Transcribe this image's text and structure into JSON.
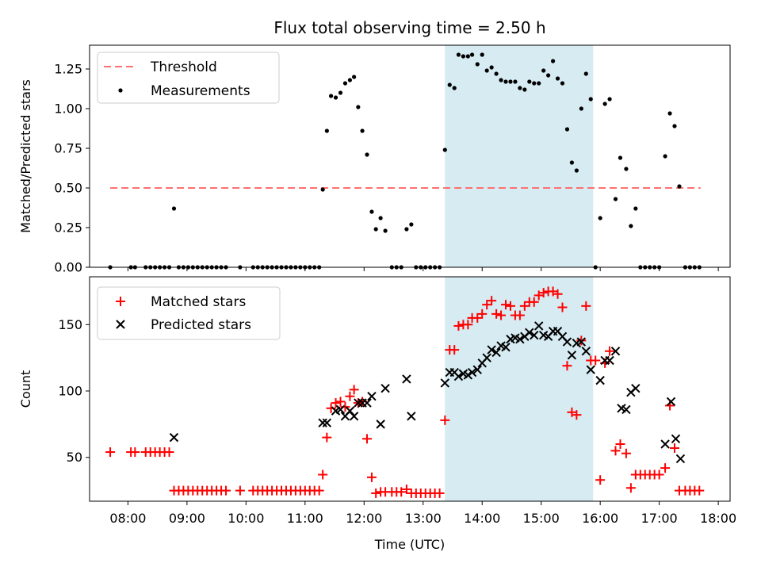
{
  "title": "Flux total observing time = 2.50 h",
  "xlabel": "Time (UTC)",
  "x_ticks": [
    "08:00",
    "09:00",
    "10:00",
    "11:00",
    "12:00",
    "13:00",
    "14:00",
    "15:00",
    "16:00",
    "17:00",
    "18:00"
  ],
  "x_tick_hours": [
    8,
    9,
    10,
    11,
    12,
    13,
    14,
    15,
    16,
    17,
    18
  ],
  "x_range_hours": [
    7.35,
    18.2
  ],
  "highlight_hours": [
    13.37,
    15.88
  ],
  "colors": {
    "threshold": "#ff7070",
    "measure": "#000000",
    "matched": "#ff0000",
    "predicted": "#000000",
    "highlight": "#add8e6"
  },
  "chart_data": [
    {
      "type": "scatter",
      "ylabel": "Matched/Predicted stars",
      "ylim": [
        0,
        1.4
      ],
      "yticks": [
        0,
        0.25,
        0.5,
        0.75,
        1.0,
        1.25
      ],
      "ytick_labels": [
        "0.00",
        "0.25",
        "0.50",
        "0.75",
        "1.00",
        "1.25"
      ],
      "legend": {
        "placement": "top-left",
        "threshold_label": "Threshold",
        "measure_label": "Measurements"
      },
      "threshold": {
        "value": 0.5,
        "x_start": 7.7,
        "x_end": 17.7
      },
      "measurements": [
        [
          7.7,
          0
        ],
        [
          8.05,
          0
        ],
        [
          8.12,
          0
        ],
        [
          8.3,
          0
        ],
        [
          8.38,
          0
        ],
        [
          8.46,
          0
        ],
        [
          8.54,
          0
        ],
        [
          8.62,
          0
        ],
        [
          8.7,
          0
        ],
        [
          8.78,
          0.37
        ],
        [
          8.86,
          0
        ],
        [
          8.94,
          0
        ],
        [
          9.02,
          0
        ],
        [
          9.1,
          0
        ],
        [
          9.18,
          0
        ],
        [
          9.26,
          0
        ],
        [
          9.34,
          0
        ],
        [
          9.42,
          0
        ],
        [
          9.5,
          0
        ],
        [
          9.58,
          0
        ],
        [
          9.66,
          0
        ],
        [
          9.9,
          0
        ],
        [
          10.12,
          0
        ],
        [
          10.2,
          0
        ],
        [
          10.28,
          0
        ],
        [
          10.36,
          0
        ],
        [
          10.44,
          0
        ],
        [
          10.52,
          0
        ],
        [
          10.6,
          0
        ],
        [
          10.68,
          0
        ],
        [
          10.76,
          0
        ],
        [
          10.84,
          0
        ],
        [
          10.92,
          0
        ],
        [
          11.0,
          0
        ],
        [
          11.08,
          0
        ],
        [
          11.16,
          0
        ],
        [
          11.24,
          0
        ],
        [
          11.3,
          0.49
        ],
        [
          11.37,
          0.86
        ],
        [
          11.44,
          1.08
        ],
        [
          11.52,
          1.07
        ],
        [
          11.6,
          1.1
        ],
        [
          11.68,
          1.16
        ],
        [
          11.76,
          1.18
        ],
        [
          11.83,
          1.2
        ],
        [
          11.9,
          1.01
        ],
        [
          11.97,
          0.86
        ],
        [
          12.05,
          0.71
        ],
        [
          12.13,
          0.35
        ],
        [
          12.2,
          0.24
        ],
        [
          12.28,
          0.31
        ],
        [
          12.36,
          0.23
        ],
        [
          12.47,
          0
        ],
        [
          12.55,
          0
        ],
        [
          12.63,
          0
        ],
        [
          12.72,
          0.24
        ],
        [
          12.8,
          0.27
        ],
        [
          12.88,
          0
        ],
        [
          12.96,
          0
        ],
        [
          13.04,
          0
        ],
        [
          13.12,
          0
        ],
        [
          13.2,
          0
        ],
        [
          13.28,
          0
        ],
        [
          13.37,
          0.74
        ],
        [
          13.45,
          1.15
        ],
        [
          13.53,
          1.13
        ],
        [
          13.6,
          1.34
        ],
        [
          13.68,
          1.33
        ],
        [
          13.76,
          1.33
        ],
        [
          13.83,
          1.34
        ],
        [
          13.92,
          1.28
        ],
        [
          14.0,
          1.34
        ],
        [
          14.08,
          1.24
        ],
        [
          14.16,
          1.26
        ],
        [
          14.24,
          1.22
        ],
        [
          14.32,
          1.18
        ],
        [
          14.4,
          1.17
        ],
        [
          14.48,
          1.17
        ],
        [
          14.56,
          1.17
        ],
        [
          14.64,
          1.13
        ],
        [
          14.72,
          1.12
        ],
        [
          14.8,
          1.17
        ],
        [
          14.88,
          1.16
        ],
        [
          14.96,
          1.16
        ],
        [
          15.04,
          1.24
        ],
        [
          15.12,
          1.21
        ],
        [
          15.2,
          1.3
        ],
        [
          15.28,
          1.19
        ],
        [
          15.36,
          1.16
        ],
        [
          15.44,
          0.87
        ],
        [
          15.52,
          0.66
        ],
        [
          15.6,
          0.61
        ],
        [
          15.68,
          1.0
        ],
        [
          15.76,
          1.22
        ],
        [
          15.84,
          1.06
        ],
        [
          15.92,
          0
        ],
        [
          16.0,
          0.31
        ],
        [
          16.08,
          1.03
        ],
        [
          16.16,
          1.06
        ],
        [
          16.26,
          0.43
        ],
        [
          16.34,
          0.69
        ],
        [
          16.44,
          0.62
        ],
        [
          16.52,
          0.26
        ],
        [
          16.6,
          0.37
        ],
        [
          16.68,
          0
        ],
        [
          16.76,
          0
        ],
        [
          16.84,
          0
        ],
        [
          16.92,
          0
        ],
        [
          17.0,
          0
        ],
        [
          17.1,
          0.7
        ],
        [
          17.18,
          0.97
        ],
        [
          17.26,
          0.89
        ],
        [
          17.34,
          0.51
        ],
        [
          17.44,
          0
        ],
        [
          17.52,
          0
        ],
        [
          17.6,
          0
        ],
        [
          17.68,
          0
        ]
      ]
    },
    {
      "type": "scatter",
      "ylabel": "Count",
      "ylim": [
        17,
        186
      ],
      "yticks": [
        50,
        100,
        150
      ],
      "ytick_labels": [
        "50",
        "100",
        "150"
      ],
      "xlabel": "Time (UTC)",
      "legend": {
        "placement": "top-left",
        "matched_label": "Matched stars",
        "predicted_label": "Predicted stars"
      },
      "matched": [
        [
          7.7,
          54
        ],
        [
          8.05,
          54
        ],
        [
          8.12,
          54
        ],
        [
          8.3,
          54
        ],
        [
          8.38,
          54
        ],
        [
          8.46,
          54
        ],
        [
          8.54,
          54
        ],
        [
          8.62,
          54
        ],
        [
          8.7,
          54
        ],
        [
          8.78,
          25
        ],
        [
          8.86,
          25
        ],
        [
          8.94,
          25
        ],
        [
          9.02,
          25
        ],
        [
          9.1,
          25
        ],
        [
          9.18,
          25
        ],
        [
          9.26,
          25
        ],
        [
          9.34,
          25
        ],
        [
          9.42,
          25
        ],
        [
          9.5,
          25
        ],
        [
          9.58,
          25
        ],
        [
          9.66,
          25
        ],
        [
          9.9,
          25
        ],
        [
          10.12,
          25
        ],
        [
          10.2,
          25
        ],
        [
          10.28,
          25
        ],
        [
          10.36,
          25
        ],
        [
          10.44,
          25
        ],
        [
          10.52,
          25
        ],
        [
          10.6,
          25
        ],
        [
          10.68,
          25
        ],
        [
          10.76,
          25
        ],
        [
          10.84,
          25
        ],
        [
          10.92,
          25
        ],
        [
          11.0,
          25
        ],
        [
          11.08,
          25
        ],
        [
          11.16,
          25
        ],
        [
          11.24,
          25
        ],
        [
          11.3,
          37
        ],
        [
          11.37,
          65
        ],
        [
          11.44,
          87
        ],
        [
          11.52,
          91
        ],
        [
          11.6,
          92
        ],
        [
          11.68,
          88
        ],
        [
          11.76,
          96
        ],
        [
          11.83,
          101
        ],
        [
          11.9,
          91
        ],
        [
          11.97,
          92
        ],
        [
          12.05,
          64
        ],
        [
          12.13,
          35
        ],
        [
          12.2,
          23
        ],
        [
          12.28,
          24
        ],
        [
          12.36,
          24
        ],
        [
          12.47,
          24
        ],
        [
          12.55,
          24
        ],
        [
          12.63,
          24
        ],
        [
          12.72,
          26
        ],
        [
          12.8,
          23
        ],
        [
          12.88,
          23
        ],
        [
          12.96,
          23
        ],
        [
          13.04,
          23
        ],
        [
          13.12,
          23
        ],
        [
          13.2,
          23
        ],
        [
          13.28,
          23
        ],
        [
          13.37,
          78
        ],
        [
          13.45,
          131
        ],
        [
          13.53,
          131
        ],
        [
          13.6,
          149
        ],
        [
          13.68,
          150
        ],
        [
          13.76,
          150
        ],
        [
          13.83,
          155
        ],
        [
          13.92,
          155
        ],
        [
          14.0,
          158
        ],
        [
          14.08,
          165
        ],
        [
          14.16,
          168
        ],
        [
          14.24,
          158
        ],
        [
          14.32,
          157
        ],
        [
          14.4,
          165
        ],
        [
          14.48,
          164
        ],
        [
          14.56,
          157
        ],
        [
          14.64,
          157
        ],
        [
          14.72,
          164
        ],
        [
          14.8,
          167
        ],
        [
          14.88,
          167
        ],
        [
          14.96,
          172
        ],
        [
          15.04,
          174
        ],
        [
          15.12,
          175
        ],
        [
          15.2,
          175
        ],
        [
          15.28,
          173
        ],
        [
          15.36,
          163
        ],
        [
          15.44,
          119
        ],
        [
          15.52,
          84
        ],
        [
          15.6,
          82
        ],
        [
          15.68,
          138
        ],
        [
          15.76,
          164
        ],
        [
          15.84,
          123
        ],
        [
          15.92,
          123
        ],
        [
          16.0,
          33
        ],
        [
          16.08,
          121
        ],
        [
          16.16,
          130
        ],
        [
          16.26,
          55
        ],
        [
          16.34,
          60
        ],
        [
          16.44,
          53
        ],
        [
          16.52,
          27
        ],
        [
          16.6,
          37
        ],
        [
          16.68,
          37
        ],
        [
          16.76,
          37
        ],
        [
          16.84,
          37
        ],
        [
          16.92,
          37
        ],
        [
          17.0,
          37
        ],
        [
          17.1,
          42
        ],
        [
          17.18,
          89
        ],
        [
          17.26,
          57
        ],
        [
          17.34,
          25
        ],
        [
          17.44,
          25
        ],
        [
          17.52,
          25
        ],
        [
          17.6,
          25
        ],
        [
          17.68,
          25
        ]
      ],
      "predicted": [
        [
          8.78,
          65
        ],
        [
          11.3,
          76
        ],
        [
          11.37,
          76
        ],
        [
          11.52,
          85
        ],
        [
          11.6,
          86
        ],
        [
          11.68,
          81
        ],
        [
          11.76,
          85
        ],
        [
          11.83,
          81
        ],
        [
          11.9,
          91
        ],
        [
          11.97,
          91
        ],
        [
          12.05,
          91
        ],
        [
          12.13,
          96
        ],
        [
          12.28,
          75
        ],
        [
          12.36,
          102
        ],
        [
          12.72,
          109
        ],
        [
          12.8,
          81
        ],
        [
          13.37,
          106
        ],
        [
          13.45,
          114
        ],
        [
          13.53,
          114
        ],
        [
          13.6,
          111
        ],
        [
          13.68,
          113
        ],
        [
          13.76,
          112
        ],
        [
          13.83,
          114
        ],
        [
          13.92,
          116
        ],
        [
          14.0,
          121
        ],
        [
          14.08,
          125
        ],
        [
          14.16,
          131
        ],
        [
          14.24,
          129
        ],
        [
          14.32,
          134
        ],
        [
          14.4,
          133
        ],
        [
          14.48,
          139
        ],
        [
          14.56,
          140
        ],
        [
          14.64,
          139
        ],
        [
          14.72,
          141
        ],
        [
          14.8,
          144
        ],
        [
          14.88,
          142
        ],
        [
          14.96,
          149
        ],
        [
          15.04,
          142
        ],
        [
          15.12,
          141
        ],
        [
          15.2,
          145
        ],
        [
          15.28,
          145
        ],
        [
          15.36,
          141
        ],
        [
          15.44,
          137
        ],
        [
          15.52,
          127
        ],
        [
          15.6,
          136
        ],
        [
          15.68,
          137
        ],
        [
          15.76,
          130
        ],
        [
          15.84,
          116
        ],
        [
          16.0,
          108
        ],
        [
          16.08,
          123
        ],
        [
          16.16,
          123
        ],
        [
          16.26,
          130
        ],
        [
          16.36,
          87
        ],
        [
          16.44,
          86
        ],
        [
          16.52,
          99
        ],
        [
          16.6,
          102
        ],
        [
          17.1,
          60
        ],
        [
          17.2,
          92
        ],
        [
          17.28,
          64
        ],
        [
          17.36,
          49
        ]
      ]
    }
  ]
}
